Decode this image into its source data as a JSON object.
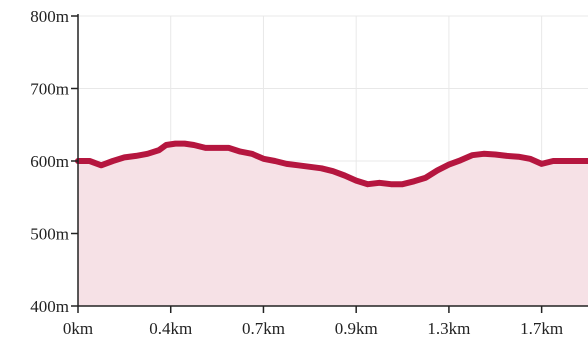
{
  "chart_data": {
    "type": "area",
    "title": "",
    "xlabel": "",
    "ylabel": "",
    "ylim": [
      400,
      800
    ],
    "xlim": [
      0,
      2.2
    ],
    "grid": true,
    "y_ticks": [
      {
        "value": 400,
        "label": "400m"
      },
      {
        "value": 500,
        "label": "500m"
      },
      {
        "value": 600,
        "label": "600m"
      },
      {
        "value": 700,
        "label": "700m"
      },
      {
        "value": 800,
        "label": "800m"
      }
    ],
    "x_ticks": [
      {
        "value": 0,
        "label": "0km"
      },
      {
        "value": 0.4,
        "label": "0.4km"
      },
      {
        "value": 0.8,
        "label": "0.7km"
      },
      {
        "value": 1.2,
        "label": "0.9km"
      },
      {
        "value": 1.6,
        "label": "1.3km"
      },
      {
        "value": 2.0,
        "label": "1.7km"
      }
    ],
    "series": [
      {
        "x": [
          0,
          0.05,
          0.1,
          0.15,
          0.2,
          0.25,
          0.3,
          0.35,
          0.38,
          0.42,
          0.46,
          0.5,
          0.55,
          0.6,
          0.65,
          0.7,
          0.75,
          0.8,
          0.85,
          0.9,
          0.95,
          1.0,
          1.05,
          1.1,
          1.15,
          1.2,
          1.25,
          1.3,
          1.35,
          1.4,
          1.45,
          1.5,
          1.55,
          1.6,
          1.65,
          1.7,
          1.75,
          1.8,
          1.85,
          1.9,
          1.95,
          2.0,
          2.05,
          2.1,
          2.15,
          2.2
        ],
        "values": [
          600,
          600,
          594,
          600,
          605,
          607,
          610,
          615,
          622,
          624,
          624,
          622,
          618,
          618,
          618,
          613,
          610,
          603,
          600,
          596,
          594,
          592,
          590,
          586,
          580,
          573,
          568,
          570,
          568,
          568,
          572,
          577,
          587,
          595,
          601,
          608,
          610,
          609,
          607,
          606,
          603,
          596,
          600,
          600,
          600,
          600
        ]
      }
    ],
    "colors": {
      "line": "#b5163f",
      "fill": "#f6e1e6",
      "grid": "#e8e8e8",
      "axis": "#222222"
    }
  }
}
